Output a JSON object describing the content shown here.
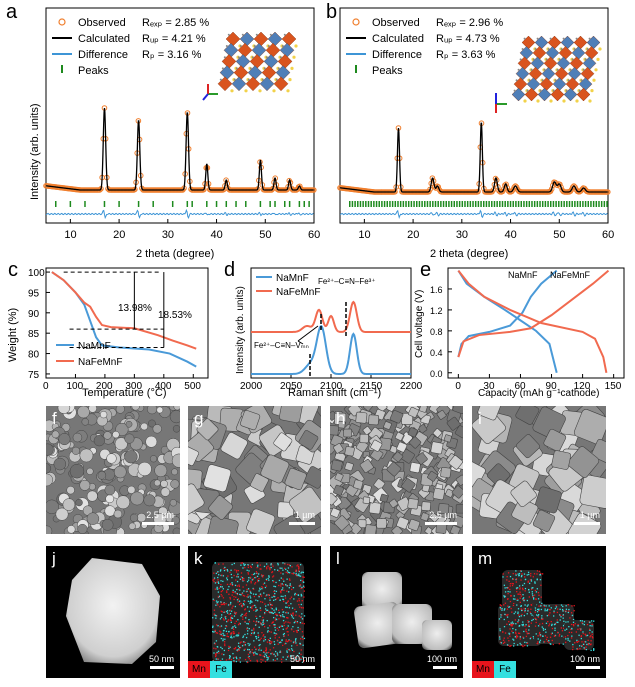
{
  "panels": {
    "a": {
      "letter": "a",
      "legend": [
        "Observed",
        "Calculated",
        "Difference",
        "Peaks"
      ],
      "stats": [
        "Rₑₓₚ = 2.85 %",
        "Rᵤₚ = 4.21 %",
        "Rₚ = 3.16 %"
      ],
      "ylabel": "Intensity (arb. units)",
      "xlabel": "2  theta (degree)",
      "xticks": [
        "10",
        "20",
        "30",
        "40",
        "50",
        "60"
      ]
    },
    "b": {
      "letter": "b",
      "legend": [
        "Observed",
        "Calculated",
        "Difference",
        "Peaks"
      ],
      "stats": [
        "Rₑₓₚ = 2.96 %",
        "Rᵤₚ = 4.73 %",
        "Rₚ = 3.63 %"
      ],
      "xlabel": "2 theta (degree)",
      "xticks": [
        "10",
        "20",
        "30",
        "40",
        "50",
        "60"
      ]
    },
    "c": {
      "letter": "c",
      "ylabel": "Weight (%)",
      "xlabel": "Temperature (°C)",
      "xticks": [
        "0",
        "100",
        "200",
        "300",
        "400",
        "500"
      ],
      "yticks": [
        "75",
        "80",
        "85",
        "90",
        "95",
        "100"
      ],
      "legend": [
        "NaMnF",
        "NaFeMnF"
      ],
      "annotations": [
        "13.98%",
        "18.53%"
      ]
    },
    "d": {
      "letter": "d",
      "ylabel": "Intensity (arb. units)",
      "xlabel": "Raman shift (cm⁻¹)",
      "xticks": [
        "2000",
        "2050",
        "2100",
        "2150",
        "2200"
      ],
      "legend": [
        "NaMnF",
        "NaFeMnF"
      ],
      "annotations": [
        "Fe²⁺–C≡N–Fe³⁺",
        "Fe²⁺–C≡N–Vₘₙ"
      ]
    },
    "e": {
      "letter": "e",
      "ylabel": "Cell voltage (V)",
      "xlabel": "Capacity (mAh g⁻¹cathode)",
      "xticks": [
        "0",
        "30",
        "60",
        "90",
        "120",
        "150"
      ],
      "yticks": [
        "0.0",
        "0.4",
        "0.8",
        "1.2",
        "1.6"
      ],
      "series_labels": [
        "NaMnF",
        "NaFeMnF"
      ]
    },
    "micro": [
      {
        "letter": "f",
        "scale": "2.5 µm"
      },
      {
        "letter": "g",
        "scale": "1 µm"
      },
      {
        "letter": "h",
        "scale": "2.5 µm"
      },
      {
        "letter": "i",
        "scale": "1 µm"
      },
      {
        "letter": "j",
        "scale": "50 nm"
      },
      {
        "letter": "k",
        "scale": "50 nm",
        "tags": [
          "Mn",
          "Fe"
        ]
      },
      {
        "letter": "l",
        "scale": "100 nm"
      },
      {
        "letter": "m",
        "scale": "100 nm",
        "tags": [
          "Mn",
          "Fe"
        ]
      }
    ]
  },
  "colors": {
    "observed": "#f07f2e",
    "calculated": "#000000",
    "difference": "#3d95d6",
    "peaks": "#1e8a1e",
    "namnf": "#4a9ad8",
    "nafemnf": "#f16a4f",
    "mn": "#e8141c",
    "fe": "#34e0e0"
  }
}
